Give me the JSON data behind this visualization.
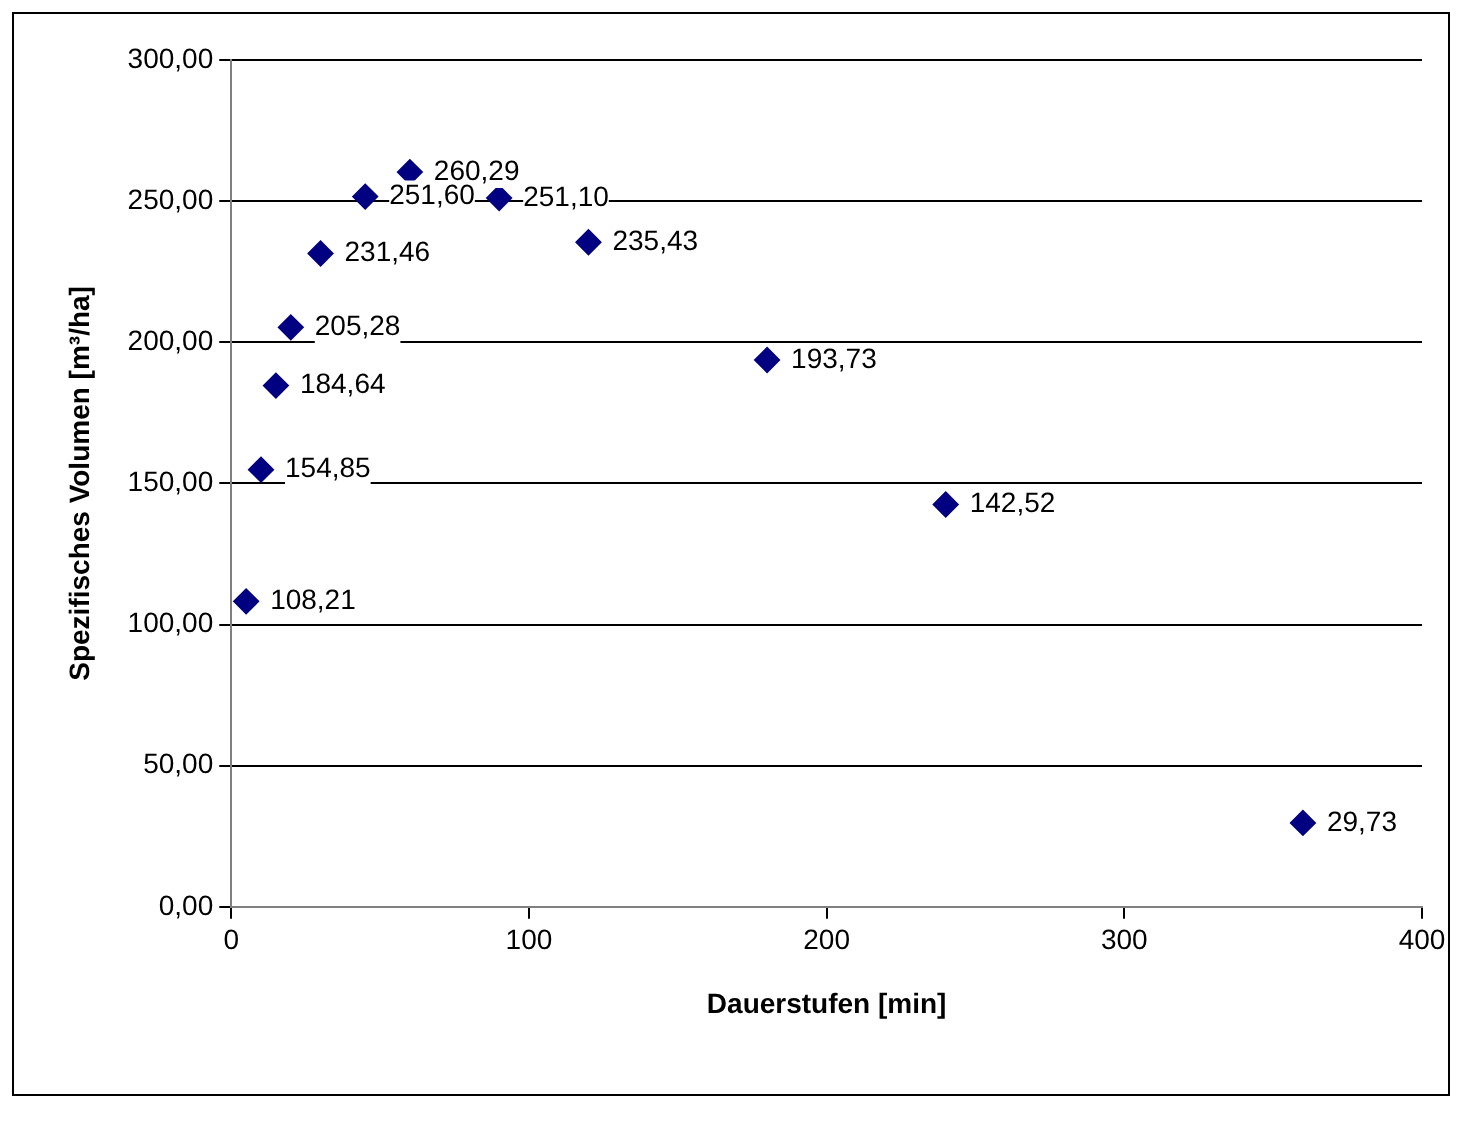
{
  "chart_data": {
    "type": "scatter",
    "xlabel": "Dauerstufen [min]",
    "ylabel": "Spezifisches Volumen [m³/ha]",
    "x": [
      5,
      10,
      15,
      20,
      30,
      45,
      60,
      90,
      120,
      180,
      240,
      360
    ],
    "series": [
      {
        "color": "#000080",
        "values": [
          108.21,
          154.85,
          184.64,
          205.28,
          231.46,
          251.6,
          260.29,
          251.1,
          235.43,
          193.73,
          142.52,
          29.73
        ],
        "value_labels": [
          "108,21",
          "154,85",
          "184,64",
          "205,28",
          "231,46",
          "251,60",
          "260,29",
          "251,10",
          "235,43",
          "193,73",
          "142,52",
          "29,73"
        ]
      }
    ],
    "xlim": [
      0,
      400
    ],
    "xticks": [
      0,
      100,
      200,
      300,
      400
    ],
    "ylim": [
      0,
      300
    ],
    "yticks": [
      {
        "value": 0,
        "label": "0,00"
      },
      {
        "value": 50,
        "label": "50,00"
      },
      {
        "value": 100,
        "label": "100,00"
      },
      {
        "value": 150,
        "label": "150,00"
      },
      {
        "value": 200,
        "label": "200,00"
      },
      {
        "value": 250,
        "label": "250,00"
      },
      {
        "value": 300,
        "label": "300,00"
      }
    ],
    "grid": "y",
    "marker": "diamond",
    "legend": false
  }
}
